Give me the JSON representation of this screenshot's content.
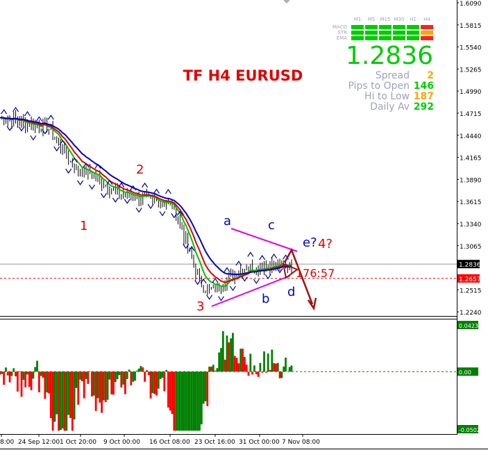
{
  "chart_title": "TF H4 EURUSD",
  "colors": {
    "background": "#ffffff",
    "candle": "#000000",
    "ema_fast": "#00c000",
    "ema_mid": "#e00000",
    "ema_slow": "#0000c0",
    "fractal": "#0000a0",
    "triangle": "#e000e0",
    "wave_red": "#e00000",
    "wave_blue": "#0000c0",
    "projection": "#a01010",
    "osc_up": "#008000",
    "osc_down": "#ff0000",
    "panel_green": "#00cc00",
    "panel_red": "#ff2020",
    "panel_orange": "#ffa500",
    "panel_grey": "#a0a0c0",
    "price_box": "#000000",
    "level_box": "#ff0000"
  },
  "dashboard": {
    "timeframes": [
      "M1",
      "M5",
      "M15",
      "M30",
      "H1",
      "H4"
    ],
    "rows": [
      "MACD",
      "STR",
      "EMA"
    ],
    "signals": [
      [
        "up",
        "up",
        "up",
        "up",
        "up",
        "down"
      ],
      [
        "up",
        "up",
        "up",
        "up",
        "up",
        "neutral"
      ],
      [
        "up",
        "up",
        "up",
        "up",
        "up",
        "down"
      ]
    ],
    "bid": "1.2836",
    "stats": [
      {
        "label": "Spread",
        "value": "2",
        "color": "#ffa500"
      },
      {
        "label": "Pips to Open",
        "value": "146",
        "color": "#00cc00"
      },
      {
        "label": "Hi to Low",
        "value": "187",
        "color": "#ffa500"
      },
      {
        "label": "Daily Av",
        "value": "292",
        "color": "#00cc00"
      }
    ]
  },
  "annotations": {
    "waves": [
      {
        "text": "1",
        "color": "red"
      },
      {
        "text": "2",
        "color": "red"
      },
      {
        "text": "3",
        "color": "red"
      },
      {
        "text": "a",
        "color": "blue"
      },
      {
        "text": "b",
        "color": "blue"
      },
      {
        "text": "c",
        "color": "blue"
      },
      {
        "text": "d",
        "color": "blue"
      },
      {
        "text": "e?",
        "color": "blue"
      },
      {
        "text": "4?",
        "color": "red"
      }
    ],
    "time_label": "176:57"
  },
  "chart_data": {
    "type": "line",
    "price_scale": {
      "ylim": [
        1.2224,
        1.609
      ],
      "ticks": [
        "1.6090",
        "1.5815",
        "1.5540",
        "1.5265",
        "1.4990",
        "1.4715",
        "1.4440",
        "1.4165",
        "1.3890",
        "1.3615",
        "1.3340",
        "1.3065",
        "1.2836",
        "1.2657",
        "1.2515",
        "1.2240"
      ],
      "current_price": "1.2836",
      "marked_level": "1.2657"
    },
    "x_ticks": [
      "8:00",
      "24 Sep 12:00",
      "1 Oct 20:00",
      "9 Oct 00:00",
      "16 Oct 08:00",
      "23 Oct 16:00",
      "31 Oct 00:00",
      "7 Nov 08:00"
    ],
    "oscillator": {
      "type": "histogram",
      "ticks": [
        "0.0423",
        "0.00",
        "-0.05026"
      ],
      "ylim": [
        -0.05026,
        0.0423
      ]
    },
    "x": [
      "8:00",
      "24 Sep 12:00",
      "1 Oct 20:00",
      "9 Oct 00:00",
      "16 Oct 08:00",
      "23 Oct 16:00",
      "31 Oct 00:00",
      "7 Nov 08:00"
    ],
    "series": [
      {
        "values": [
          1.466,
          1.456,
          1.398,
          1.37,
          1.36,
          1.252,
          1.28,
          1.283
        ]
      }
    ]
  }
}
